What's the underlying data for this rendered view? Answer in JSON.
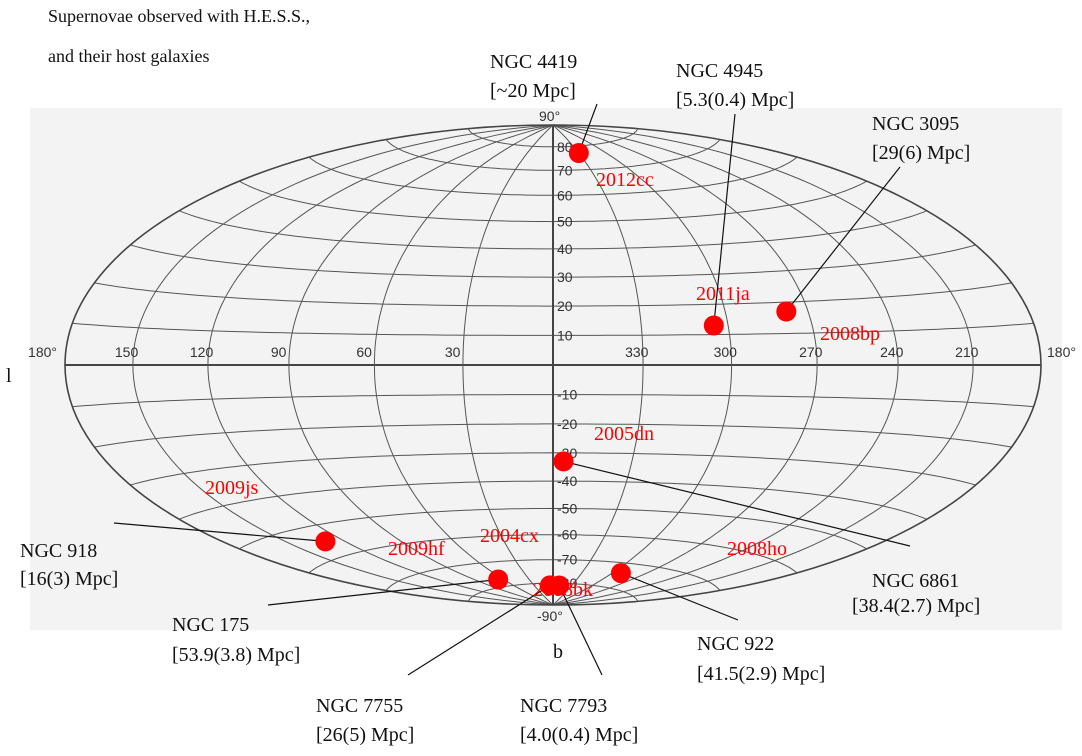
{
  "title_lines": [
    "Supernovae observed with H.E.S.S.,",
    "and their host galaxies"
  ],
  "axis_labels": {
    "l": "l",
    "b": "b"
  },
  "colors": {
    "marker": "#ff0000",
    "grid": "#555555",
    "axis": "#444444",
    "label_red": "#ff0000",
    "text": "#111111",
    "panel": "#f2f2f2"
  },
  "chart_data": {
    "type": "scatter",
    "projection": "aitoff-hammer",
    "coordinate_system": "galactic",
    "x_axis": {
      "label": "l",
      "ticks": [
        "180°",
        "150",
        "120",
        "90",
        "60",
        "30",
        "330",
        "300",
        "270",
        "240",
        "210",
        "180°"
      ]
    },
    "y_axis": {
      "label": "b",
      "ticks": [
        "90°",
        "80",
        "70",
        "60",
        "50",
        "40",
        "30",
        "20",
        "10",
        "-10",
        "-20",
        "-30",
        "-40",
        "-50",
        "-60",
        "-70",
        "-80",
        "-90°"
      ]
    },
    "points": [
      {
        "sn": "2012cc",
        "l": 330,
        "b": 77,
        "galaxy": "NGC 4419",
        "distance": "[~20 Mpc]"
      },
      {
        "sn": "2011ja",
        "l": 305,
        "b": 13,
        "galaxy": "NGC 4945",
        "distance": "[5.3(0.4) Mpc]"
      },
      {
        "sn": "2008bp",
        "l": 278,
        "b": 17,
        "galaxy": "NGC 3095",
        "distance": "[29(6) Mpc]"
      },
      {
        "sn": "2005dn",
        "l": 356,
        "b": -33,
        "galaxy": "NGC 6861",
        "distance": "[38.4(2.7) Mpc]"
      },
      {
        "sn": "2009js",
        "l": 130,
        "b": -55,
        "galaxy": "NGC 918",
        "distance": "[16(3) Mpc]"
      },
      {
        "sn": "2009hf",
        "l": 66,
        "b": -77,
        "galaxy": "NGC 175",
        "distance": "[53.9(3.8) Mpc]"
      },
      {
        "sn": "2004cx",
        "l": 5,
        "b": -81,
        "galaxy": "NGC 7755",
        "distance": "[26(5) Mpc]"
      },
      {
        "sn": "2008bk",
        "l": 350,
        "b": -81,
        "galaxy": "NGC 7793",
        "distance": "[4.0(0.4) Mpc]"
      },
      {
        "sn": "2008ho",
        "l": 292,
        "b": -74,
        "galaxy": "NGC 922",
        "distance": "[41.5(2.9) Mpc]"
      }
    ]
  }
}
